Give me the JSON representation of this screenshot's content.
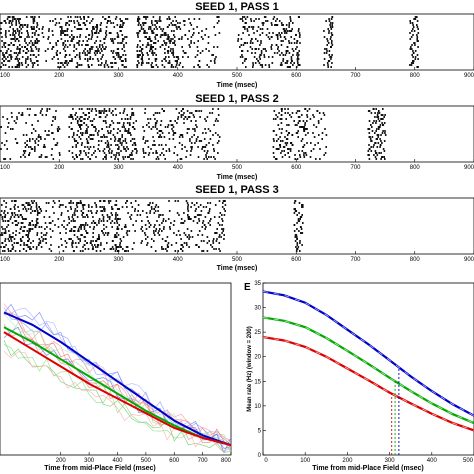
{
  "chart_data": [
    {
      "type": "scatter",
      "title": "SEED 1, PASS 1",
      "xlabel": "Time (msec)",
      "xlim": [
        100,
        900
      ],
      "xticks": [
        "100",
        "200",
        "300",
        "400",
        "500",
        "600",
        "700",
        "800",
        "900"
      ],
      "raster_bursts": [
        {
          "start": 100,
          "end": 165,
          "density": 1.0
        },
        {
          "start": 170,
          "end": 200,
          "density": 0.5
        },
        {
          "start": 200,
          "end": 315,
          "density": 0.8
        },
        {
          "start": 330,
          "end": 400,
          "density": 0.9
        },
        {
          "start": 400,
          "end": 470,
          "density": 0.5
        },
        {
          "start": 500,
          "end": 605,
          "density": 0.7
        },
        {
          "start": 645,
          "end": 660,
          "density": 1.0
        },
        {
          "start": 790,
          "end": 805,
          "density": 1.0
        }
      ]
    },
    {
      "type": "scatter",
      "title": "SEED 1, PASS 2",
      "xlabel": "Time (msec)",
      "xlim": [
        100,
        900
      ],
      "xticks": [
        "100",
        "200",
        "300",
        "400",
        "500",
        "600",
        "700",
        "800",
        "900"
      ],
      "raster_bursts": [
        {
          "start": 100,
          "end": 200,
          "density": 0.5
        },
        {
          "start": 215,
          "end": 330,
          "density": 0.8
        },
        {
          "start": 340,
          "end": 470,
          "density": 0.6
        },
        {
          "start": 560,
          "end": 620,
          "density": 0.7
        },
        {
          "start": 620,
          "end": 650,
          "density": 0.4
        },
        {
          "start": 720,
          "end": 750,
          "density": 1.0
        }
      ]
    },
    {
      "type": "scatter",
      "title": "SEED 1, PASS 3",
      "xlabel": "Time (msec)",
      "xlim": [
        100,
        900
      ],
      "xticks": [
        "100",
        "200",
        "300",
        "400",
        "500",
        "600",
        "700",
        "800",
        "900"
      ],
      "raster_bursts": [
        {
          "start": 100,
          "end": 165,
          "density": 0.9
        },
        {
          "start": 165,
          "end": 215,
          "density": 0.5
        },
        {
          "start": 215,
          "end": 300,
          "density": 0.8
        },
        {
          "start": 300,
          "end": 350,
          "density": 0.5
        },
        {
          "start": 350,
          "end": 420,
          "density": 0.6
        },
        {
          "start": 420,
          "end": 480,
          "density": 0.6
        },
        {
          "start": 595,
          "end": 610,
          "density": 1.0
        }
      ]
    },
    {
      "type": "line",
      "xlabel": "Time from mid-Place Field (msec)",
      "xlim": [
        0,
        800
      ],
      "xticks": [
        "200",
        "300",
        "400",
        "500",
        "600",
        "700",
        "800"
      ],
      "series": [
        {
          "color": "#0000cc",
          "x": [
            0,
            100,
            200,
            300,
            400,
            500,
            600,
            700,
            800
          ],
          "values": [
            29,
            26.5,
            23,
            19,
            15,
            11,
            7,
            4,
            2
          ]
        },
        {
          "color": "#00aa00",
          "x": [
            0,
            100,
            200,
            300,
            400,
            500,
            600,
            700,
            800
          ],
          "values": [
            26,
            23,
            19.5,
            16,
            12.5,
            9,
            6,
            3.5,
            2
          ]
        },
        {
          "color": "#dd0000",
          "x": [
            0,
            100,
            200,
            300,
            400,
            500,
            600,
            700,
            800
          ],
          "values": [
            25,
            21.5,
            18,
            14.5,
            11.5,
            8.5,
            5.5,
            3.5,
            2
          ]
        }
      ]
    },
    {
      "type": "line",
      "panel_label": "E",
      "xlabel": "Time from mid-Place Field (msec)",
      "ylabel": "Mean rate (Hz) (window = 200)",
      "xlim": [
        0,
        500
      ],
      "ylim": [
        0,
        35
      ],
      "xticks": [
        "0",
        "100",
        "200",
        "300",
        "400",
        "500"
      ],
      "yticks": [
        "0",
        "5",
        "10",
        "15",
        "20",
        "25",
        "30",
        "35"
      ],
      "vlines": [
        {
          "x": 305,
          "color": "#dd0000"
        },
        {
          "x": 313,
          "color": "#00aa00"
        },
        {
          "x": 322,
          "color": "#0000cc"
        }
      ],
      "series": [
        {
          "color": "#0000cc",
          "x": [
            0,
            50,
            100,
            150,
            200,
            250,
            300,
            350,
            400,
            450,
            500
          ],
          "values": [
            33.3,
            32.5,
            31,
            28.5,
            25.5,
            22.5,
            19.3,
            16,
            13,
            10.3,
            8
          ]
        },
        {
          "color": "#00aa00",
          "x": [
            0,
            50,
            100,
            150,
            200,
            250,
            300,
            350,
            400,
            450,
            500
          ],
          "values": [
            28,
            27.3,
            26,
            23.8,
            21.2,
            18.5,
            15.7,
            13,
            10.5,
            8.3,
            6.5
          ]
        },
        {
          "color": "#dd0000",
          "x": [
            0,
            50,
            100,
            150,
            200,
            250,
            300,
            350,
            400,
            450,
            500
          ],
          "values": [
            24,
            23.3,
            22,
            20,
            17.6,
            15.2,
            12.7,
            10.5,
            8.4,
            6.5,
            5
          ]
        }
      ]
    }
  ]
}
